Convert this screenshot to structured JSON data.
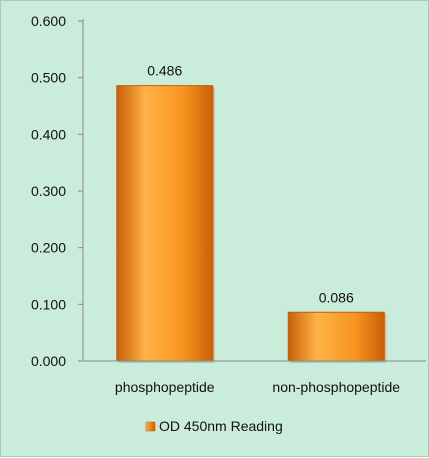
{
  "chart_data": {
    "type": "bar",
    "categories": [
      "phosphopeptide",
      "non-phosphopeptide"
    ],
    "series": [
      {
        "name": "OD 450nm Reading",
        "values": [
          0.486,
          0.086
        ]
      }
    ],
    "data_labels": [
      "0.486",
      "0.086"
    ],
    "y_ticks": [
      "0.000",
      "0.100",
      "0.200",
      "0.300",
      "0.400",
      "0.500",
      "0.600"
    ],
    "ylim": [
      0,
      0.6
    ],
    "grid": false,
    "legend": "bottom-center",
    "colors": {
      "background": "#c9ecdb",
      "bar_light": "#ffb347",
      "bar_main": "#f7941d",
      "bar_dark": "#c85f08",
      "axis": "#8a8a8a",
      "text": "#111111"
    }
  }
}
